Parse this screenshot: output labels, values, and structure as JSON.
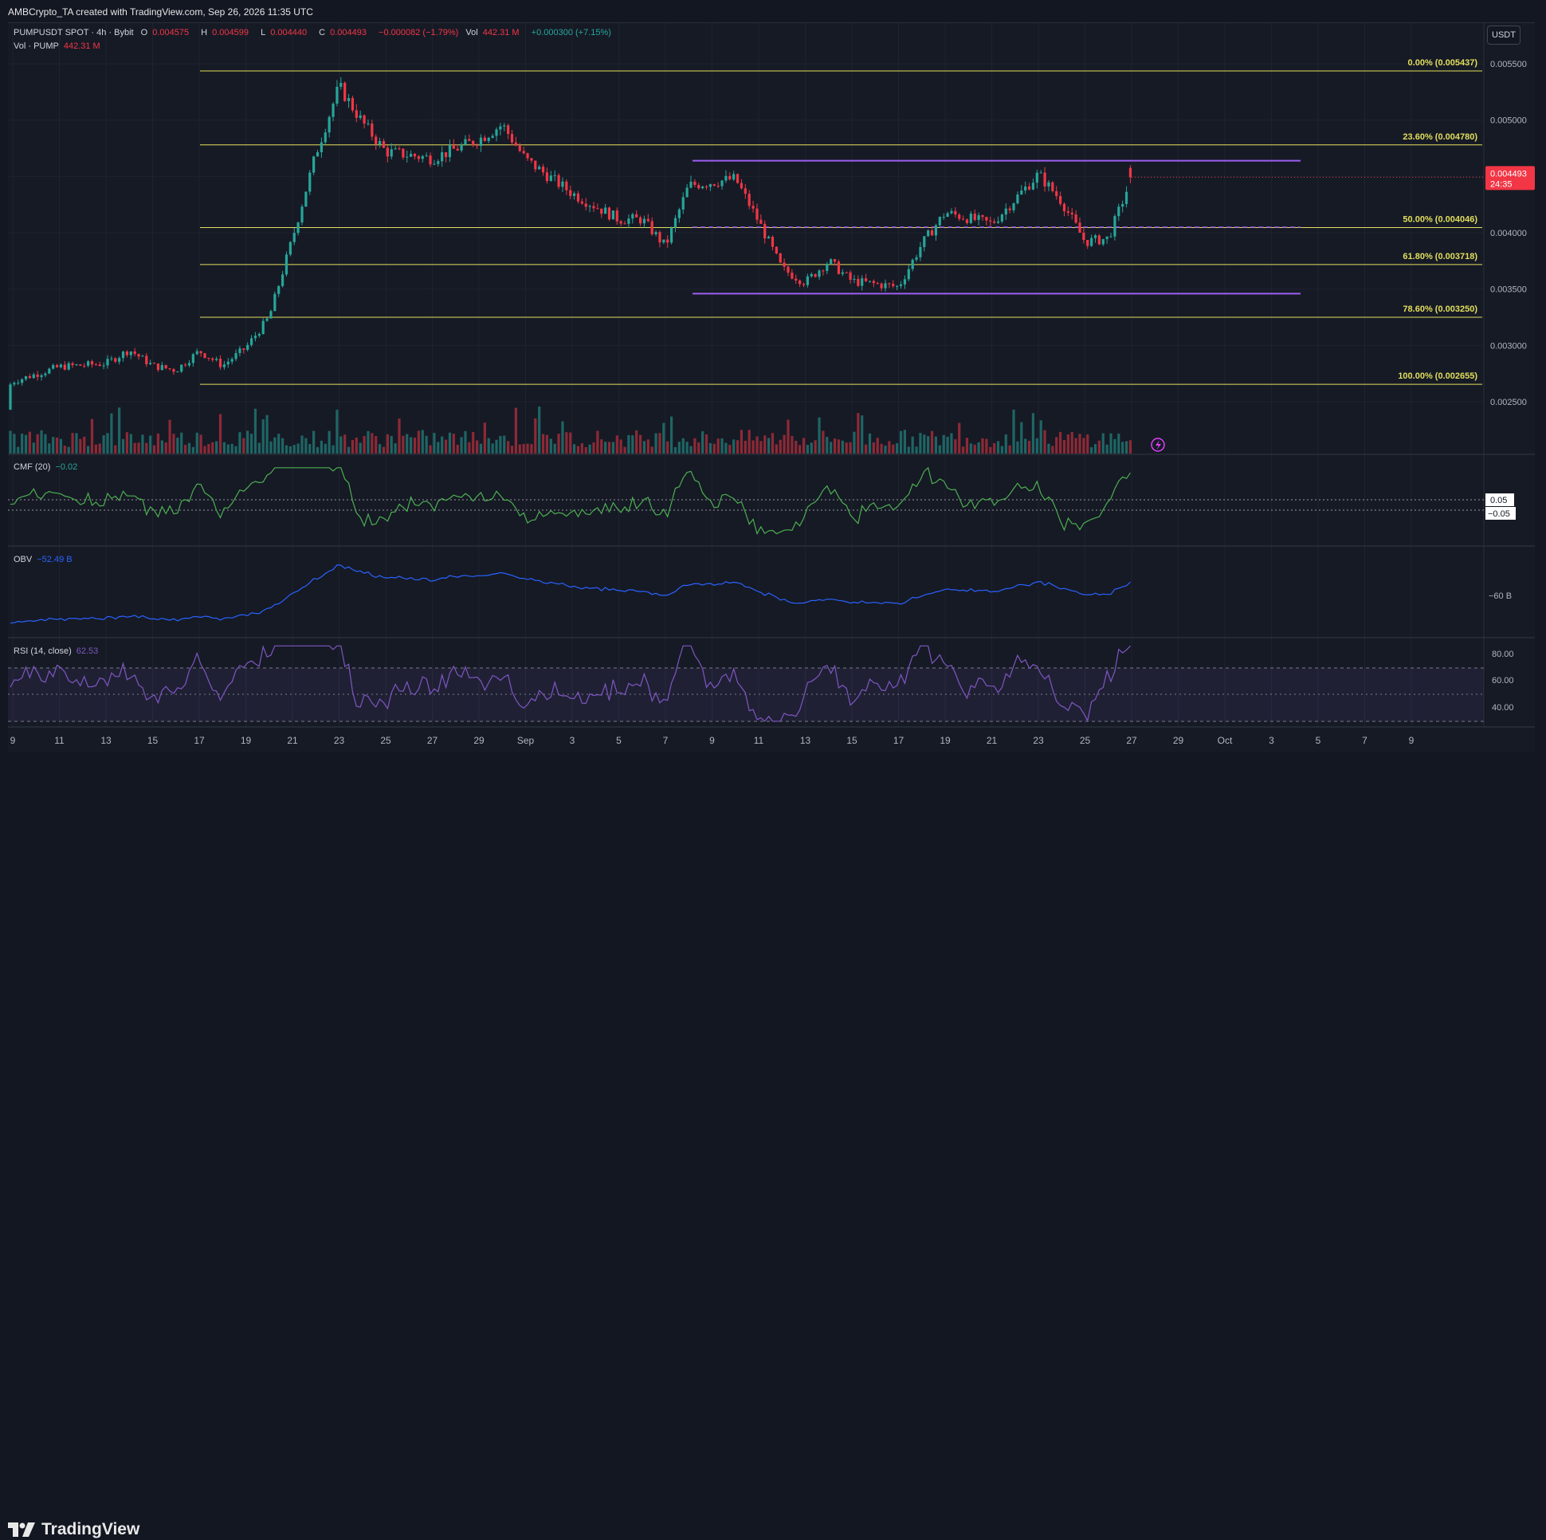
{
  "header": {
    "caption": "AMBCrypto_TA created with TradingView.com, Sep 26, 2026 11:35 UTC"
  },
  "legend": {
    "symbol": "PUMPUSDT SPOT · 4h · Bybit",
    "o_label": "O",
    "o": "0.004575",
    "h_label": "H",
    "h": "0.004599",
    "l_label": "L",
    "l": "0.004440",
    "c_label": "C",
    "c": "0.004493",
    "change": "−0.000082 (−1.79%)",
    "vol_label": "Vol",
    "vol": "442.31 M",
    "vol_change": "+0.000300 (+7.15%)"
  },
  "volume_legend": {
    "label": "Vol · PUMP",
    "value": "442.31 M"
  },
  "cmf": {
    "label": "CMF (20)",
    "value": "−0.02",
    "axis_ticks": [
      "0.05",
      "−0.05"
    ]
  },
  "obv": {
    "label": "OBV",
    "value": "−52.49 B",
    "axis_tick": "−60 B"
  },
  "rsi": {
    "label": "RSI (14, close)",
    "value": "62.53",
    "axis_ticks": [
      "80.00",
      "60.00",
      "40.00"
    ]
  },
  "price_axis": {
    "currency": "USDT",
    "ticks": [
      "0.005500",
      "0.005000",
      "0.004000",
      "0.003500",
      "0.003000",
      "0.002500"
    ],
    "current_price": "0.004493",
    "countdown": "24:35"
  },
  "time_axis": {
    "labels": [
      "9",
      "11",
      "13",
      "15",
      "17",
      "19",
      "21",
      "23",
      "25",
      "27",
      "29",
      "Sep",
      "3",
      "5",
      "7",
      "9",
      "11",
      "13",
      "15",
      "17",
      "19",
      "21",
      "23",
      "25",
      "27",
      "29",
      "Oct",
      "3",
      "5",
      "7",
      "9"
    ]
  },
  "fib_levels": [
    {
      "label": "0.00% (0.005437)",
      "price": 0.005437
    },
    {
      "label": "23.60% (0.004780)",
      "price": 0.00478
    },
    {
      "label": "50.00% (0.004046)",
      "price": 0.004046
    },
    {
      "label": "61.80% (0.003718)",
      "price": 0.003718
    },
    {
      "label": "78.60% (0.003250)",
      "price": 0.00325
    },
    {
      "label": "100.00% (0.002655)",
      "price": 0.002655
    }
  ],
  "range_lines": [
    {
      "price": 0.00464,
      "style": "solid"
    },
    {
      "price": 0.00405,
      "style": "dashed"
    },
    {
      "price": 0.00346,
      "style": "solid"
    }
  ],
  "footer": {
    "brand": "TradingView"
  },
  "colors": {
    "up": "#26a69a",
    "down": "#f23645",
    "fib": "#e2df5c",
    "range": "#9c5ff0",
    "cmf": "#4caf50",
    "obv": "#2962ff",
    "rsi": "#7e57c2",
    "text": "#d1d4dc",
    "background": "#161a25"
  },
  "chart_data": {
    "type": "candlestick",
    "symbol": "PUMPUSDT",
    "timeframe": "4h",
    "ylim": [
      0.00215,
      0.00555
    ],
    "close_path": [
      {
        "x": "Aug 8",
        "close": 0.00243
      },
      {
        "x": "Aug 9",
        "close": 0.00268
      },
      {
        "x": "Aug 11",
        "close": 0.00281
      },
      {
        "x": "Aug 13",
        "close": 0.00284
      },
      {
        "x": "Aug 14",
        "close": 0.00296
      },
      {
        "x": "Aug 15",
        "close": 0.00282
      },
      {
        "x": "Aug 16",
        "close": 0.00278
      },
      {
        "x": "Aug 17",
        "close": 0.00295
      },
      {
        "x": "Aug 18",
        "close": 0.00282
      },
      {
        "x": "Aug 19",
        "close": 0.00298
      },
      {
        "x": "Aug 20",
        "close": 0.00325
      },
      {
        "x": "Aug 21",
        "close": 0.00395
      },
      {
        "x": "Aug 22",
        "close": 0.0047
      },
      {
        "x": "Aug 23",
        "close": 0.0053
      },
      {
        "x": "Aug 24",
        "close": 0.00498
      },
      {
        "x": "Aug 25",
        "close": 0.00472
      },
      {
        "x": "Aug 27",
        "close": 0.00466
      },
      {
        "x": "Aug 29",
        "close": 0.00483
      },
      {
        "x": "Aug 30",
        "close": 0.00496
      },
      {
        "x": "Aug 31",
        "close": 0.00465
      },
      {
        "x": "Sep 2",
        "close": 0.00435
      },
      {
        "x": "Sep 4",
        "close": 0.00412
      },
      {
        "x": "Sep 5",
        "close": 0.00412
      },
      {
        "x": "Sep 6",
        "close": 0.00388
      },
      {
        "x": "Sep 7",
        "close": 0.00442
      },
      {
        "x": "Sep 9",
        "close": 0.00448
      },
      {
        "x": "Sep 10",
        "close": 0.0041
      },
      {
        "x": "Sep 11",
        "close": 0.00368
      },
      {
        "x": "Sep 12",
        "close": 0.00356
      },
      {
        "x": "Sep 13",
        "close": 0.00375
      },
      {
        "x": "Sep 14",
        "close": 0.00357
      },
      {
        "x": "Sep 16",
        "close": 0.00352
      },
      {
        "x": "Sep 17",
        "close": 0.0039
      },
      {
        "x": "Sep 18",
        "close": 0.00418
      },
      {
        "x": "Sep 20",
        "close": 0.00408
      },
      {
        "x": "Sep 21",
        "close": 0.0043
      },
      {
        "x": "Sep 22",
        "close": 0.00452
      },
      {
        "x": "Sep 23",
        "close": 0.00428
      },
      {
        "x": "Sep 24",
        "close": 0.00392
      },
      {
        "x": "Sep 25",
        "close": 0.00395
      },
      {
        "x": "Sep 26",
        "close": 0.00449
      }
    ],
    "current_price": 0.004493
  }
}
